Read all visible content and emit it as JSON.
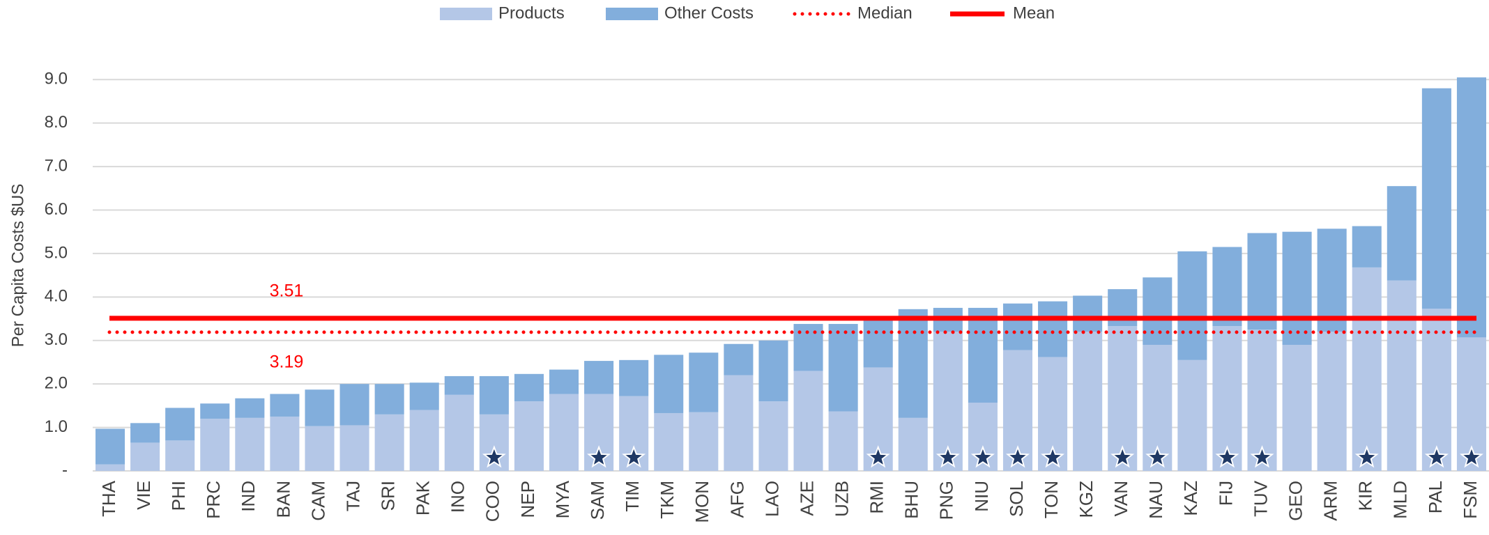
{
  "chart_data": {
    "type": "stacked_bar",
    "y_label": "Per Capita Costs $US",
    "categories": [
      "THA",
      "VIE",
      "PHI",
      "PRC",
      "IND",
      "BAN",
      "CAM",
      "TAJ",
      "SRI",
      "PAK",
      "INO",
      "COO",
      "NEP",
      "MYA",
      "SAM",
      "TIM",
      "TKM",
      "MON",
      "AFG",
      "LAO",
      "AZE",
      "UZB",
      "RMI",
      "BHU",
      "PNG",
      "NIU",
      "SOL",
      "TON",
      "KGZ",
      "VAN",
      "NAU",
      "KAZ",
      "FIJ",
      "TUV",
      "GEO",
      "ARM",
      "KIR",
      "MLD",
      "PAL",
      "FSM"
    ],
    "series": [
      {
        "name": "Products",
        "color": "#b4c7e7",
        "values": [
          0.15,
          0.65,
          0.7,
          1.2,
          1.22,
          1.25,
          1.03,
          1.05,
          1.3,
          1.4,
          1.75,
          1.3,
          1.6,
          1.77,
          1.77,
          1.72,
          1.33,
          1.35,
          2.2,
          1.6,
          2.3,
          1.37,
          2.38,
          1.22,
          3.2,
          1.57,
          2.78,
          2.62,
          3.2,
          3.33,
          2.9,
          2.55,
          3.33,
          3.25,
          2.9,
          3.2,
          4.68,
          4.38,
          3.73,
          3.07
        ]
      },
      {
        "name": "Other Costs",
        "color": "#82aedc",
        "values": [
          0.82,
          0.45,
          0.75,
          0.35,
          0.45,
          0.52,
          0.84,
          0.95,
          0.7,
          0.63,
          0.43,
          0.88,
          0.63,
          0.56,
          0.76,
          0.83,
          1.34,
          1.37,
          0.72,
          1.4,
          1.08,
          2.01,
          1.12,
          2.5,
          0.55,
          2.18,
          1.07,
          1.28,
          0.83,
          0.85,
          1.55,
          2.5,
          1.82,
          2.22,
          2.6,
          2.37,
          0.95,
          2.17,
          5.07,
          5.98
        ]
      }
    ],
    "reference_lines": [
      {
        "name": "Median",
        "value": 3.19,
        "color": "#ff0000",
        "style": "dotted"
      },
      {
        "name": "Mean",
        "value": 3.51,
        "color": "#ff0000",
        "style": "solid"
      }
    ],
    "starred": [
      "COO",
      "SAM",
      "TIM",
      "RMI",
      "PNG",
      "NIU",
      "SOL",
      "TON",
      "VAN",
      "NAU",
      "FIJ",
      "TUV",
      "KIR",
      "PAL",
      "FSM"
    ],
    "star_color": "#1f3864",
    "ylim": [
      0,
      9.1
    ],
    "yticks": [
      {
        "value": 0,
        "label": "-"
      },
      {
        "value": 1,
        "label": "1.0"
      },
      {
        "value": 2,
        "label": "2.0"
      },
      {
        "value": 3,
        "label": "3.0"
      },
      {
        "value": 4,
        "label": "4.0"
      },
      {
        "value": 5,
        "label": "5.0"
      },
      {
        "value": 6,
        "label": "6.0"
      },
      {
        "value": 7,
        "label": "7.0"
      },
      {
        "value": 8,
        "label": "8.0"
      },
      {
        "value": 9,
        "label": "9.0"
      }
    ],
    "grid": true,
    "legend": "top"
  }
}
